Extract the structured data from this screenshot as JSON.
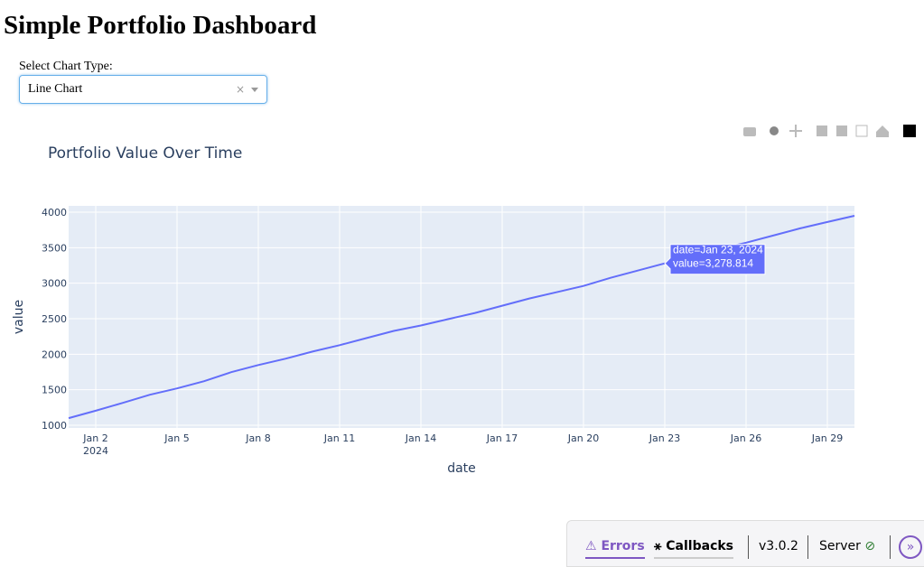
{
  "header": {
    "title": "Simple Portfolio Dashboard"
  },
  "controls": {
    "label": "Select Chart Type:",
    "selected": "Line Chart"
  },
  "chart_data": {
    "type": "line",
    "title": "Portfolio Value Over Time",
    "x_label": "date",
    "y_label": "value",
    "x": [
      "2024-01-01",
      "2024-01-02",
      "2024-01-03",
      "2024-01-04",
      "2024-01-05",
      "2024-01-06",
      "2024-01-07",
      "2024-01-08",
      "2024-01-09",
      "2024-01-10",
      "2024-01-11",
      "2024-01-12",
      "2024-01-13",
      "2024-01-14",
      "2024-01-15",
      "2024-01-16",
      "2024-01-17",
      "2024-01-18",
      "2024-01-19",
      "2024-01-20",
      "2024-01-21",
      "2024-01-22",
      "2024-01-23",
      "2024-01-24",
      "2024-01-25",
      "2024-01-26",
      "2024-01-27",
      "2024-01-28",
      "2024-01-29",
      "2024-01-30"
    ],
    "series": [
      {
        "name": "value",
        "color": "#636efa",
        "values": [
          1101,
          1205,
          1316,
          1430,
          1519,
          1620,
          1747,
          1848,
          1937,
          2038,
          2127,
          2228,
          2329,
          2405,
          2494,
          2582,
          2683,
          2785,
          2873,
          2962,
          3076,
          3177,
          3278.814,
          3380,
          3481,
          3570,
          3671,
          3772,
          3861,
          3949
        ]
      }
    ],
    "xlim": [
      "2024-01-01",
      "2024-01-30"
    ],
    "xticks": [
      {
        "value": "2024-01-02",
        "label": "Jan 2\n2024"
      },
      {
        "value": "2024-01-05",
        "label": "Jan 5"
      },
      {
        "value": "2024-01-08",
        "label": "Jan 8"
      },
      {
        "value": "2024-01-11",
        "label": "Jan 11"
      },
      {
        "value": "2024-01-14",
        "label": "Jan 14"
      },
      {
        "value": "2024-01-17",
        "label": "Jan 17"
      },
      {
        "value": "2024-01-20",
        "label": "Jan 20"
      },
      {
        "value": "2024-01-23",
        "label": "Jan 23"
      },
      {
        "value": "2024-01-26",
        "label": "Jan 26"
      },
      {
        "value": "2024-01-29",
        "label": "Jan 29"
      }
    ],
    "ylim": [
      962,
      4089
    ],
    "yticks": [
      1000,
      1500,
      2000,
      2500,
      3000,
      3500,
      4000
    ],
    "grid": true,
    "hover": {
      "index": 22,
      "lines": [
        "date=Jan 23, 2024",
        "value=3,278.814"
      ]
    }
  },
  "debug_bar": {
    "errors": "Errors",
    "callbacks": "Callbacks",
    "version": "v3.0.2",
    "server": "Server"
  }
}
